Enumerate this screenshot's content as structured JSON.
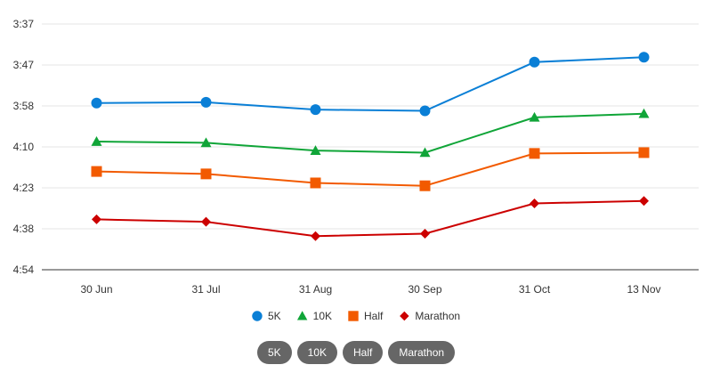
{
  "chart_data": {
    "type": "line",
    "title": "",
    "xlabel": "",
    "ylabel": "",
    "y_tick_labels": [
      "3:37",
      "3:47",
      "3:58",
      "4:10",
      "4:23",
      "4:38",
      "4:54"
    ],
    "categories": [
      "30 Jun",
      "31 Jul",
      "31 Aug",
      "30 Sep",
      "31 Oct",
      "13 Nov"
    ],
    "ylim_order": [
      0,
      6
    ],
    "y_inverted": true,
    "grid": true,
    "legend_position": "bottom",
    "series": [
      {
        "name": "5K",
        "marker": "circle",
        "color": "#0a7fd6",
        "values": [
          1.93,
          1.91,
          2.09,
          2.12,
          0.93,
          0.81
        ]
      },
      {
        "name": "10K",
        "marker": "triangle",
        "color": "#10a538",
        "values": [
          2.87,
          2.9,
          3.09,
          3.14,
          2.28,
          2.19
        ]
      },
      {
        "name": "Half",
        "marker": "square",
        "color": "#f25a00",
        "values": [
          3.6,
          3.66,
          3.88,
          3.95,
          3.16,
          3.14
        ]
      },
      {
        "name": "Marathon",
        "marker": "diamond",
        "color": "#cc0000",
        "values": [
          4.77,
          4.83,
          5.18,
          5.12,
          4.38,
          4.32
        ]
      }
    ]
  },
  "buttons": [
    "5K",
    "10K",
    "Half",
    "Marathon"
  ]
}
